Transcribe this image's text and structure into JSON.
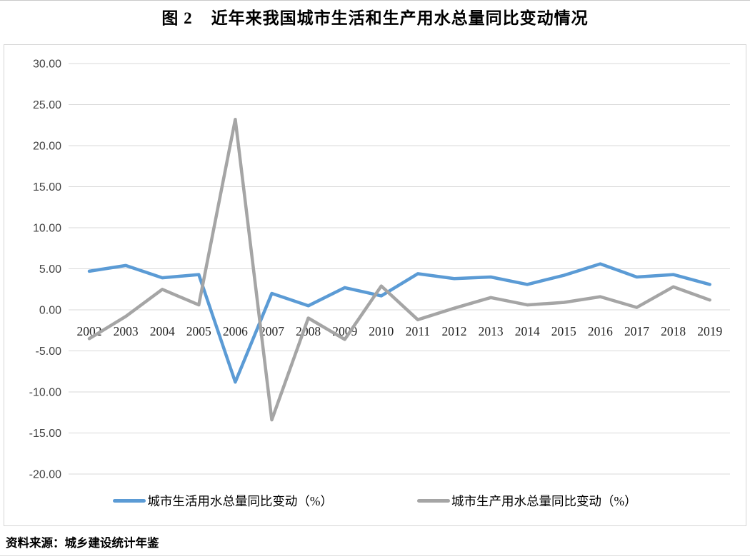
{
  "page": {
    "title_figure": "图 2",
    "title_text": "近年来我国城市生活和生产用水总量同比变动情况",
    "source_note": "资料来源：城乡建设统计年鉴"
  },
  "chart_data": {
    "type": "line",
    "title": "图 2 近年来我国城市生活和生产用水总量同比变动情况",
    "categories": [
      "2002",
      "2003",
      "2004",
      "2005",
      "2006",
      "2007",
      "2008",
      "2009",
      "2010",
      "2011",
      "2012",
      "2013",
      "2014",
      "2015",
      "2016",
      "2017",
      "2018",
      "2019"
    ],
    "series": [
      {
        "name": "城市生活用水总量同比变动（%）",
        "color": "#5B9BD5",
        "values": [
          4.7,
          5.4,
          3.9,
          4.3,
          -8.8,
          2.0,
          0.5,
          2.7,
          1.7,
          4.4,
          3.8,
          4.0,
          3.1,
          4.2,
          5.6,
          4.0,
          4.3,
          3.1
        ]
      },
      {
        "name": "城市生产用水总量同比变动（%）",
        "color": "#A5A5A5",
        "values": [
          -3.5,
          -0.8,
          2.5,
          0.6,
          23.2,
          -13.4,
          -1.0,
          -3.6,
          2.9,
          -1.2,
          0.2,
          1.5,
          0.6,
          0.9,
          1.6,
          0.3,
          2.8,
          1.2
        ]
      }
    ],
    "xlabel": "",
    "ylabel": "",
    "ylim": [
      -20,
      30
    ],
    "ytick_step": 5,
    "ytick_labels": [
      "30.00",
      "25.00",
      "20.00",
      "15.00",
      "10.00",
      "5.00",
      "0.00",
      "-5.00",
      "-10.00",
      "-15.00",
      "-20.00"
    ],
    "grid": true,
    "gridline_color": "#D9D9D9",
    "axis_number_color": "#404040",
    "legend_position": "bottom"
  }
}
